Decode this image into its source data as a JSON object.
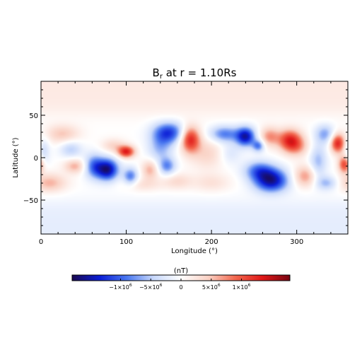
{
  "chart_data": {
    "type": "heatmap",
    "title": "B",
    "title_subscript": "r",
    "title_suffix": " at r = 1.10Rs",
    "xlabel": "Longitude (°)",
    "ylabel": "Latitude (°)",
    "xlim": [
      0,
      360
    ],
    "ylim": [
      -90,
      90
    ],
    "xticks": [
      0,
      100,
      200,
      300
    ],
    "yticks": [
      -50,
      0,
      50
    ],
    "colorbar": {
      "title": "(nT)",
      "range": [
        -1800000.0,
        1800000.0
      ],
      "colormap": [
        "#1a0a54",
        "#0b1ed6",
        "#4a78f0",
        "#c9d9fb",
        "#ffffff",
        "#fad2c5",
        "#f2684f",
        "#e01818",
        "#7a0612"
      ],
      "tick_values": [
        -1000000,
        -500000,
        0,
        500000,
        1000000
      ],
      "tick_labels": [
        "−1×10",
        "−5×10",
        "0",
        "5×10",
        "1×10"
      ],
      "tick_exponents": [
        "6",
        "6",
        "",
        "6",
        "6"
      ]
    },
    "polar_field": {
      "north": 0.12,
      "south": -0.12
    },
    "features": [
      {
        "lon": 78,
        "lat": -14,
        "value": -1600000.0,
        "rlon": 9,
        "rlat": 9
      },
      {
        "lon": 62,
        "lat": -10,
        "value": -900000.0,
        "rlon": 8,
        "rlat": 10
      },
      {
        "lon": 100,
        "lat": 7,
        "value": 1300000.0,
        "rlon": 7,
        "rlat": 5
      },
      {
        "lon": 85,
        "lat": 14,
        "value": 400000.0,
        "rlon": 10,
        "rlat": 6
      },
      {
        "lon": 105,
        "lat": -22,
        "value": -900000.0,
        "rlon": 6,
        "rlat": 7
      },
      {
        "lon": 128,
        "lat": -14,
        "value": 600000.0,
        "rlon": 7,
        "rlat": 8
      },
      {
        "lon": 148,
        "lat": -10,
        "value": -800000.0,
        "rlon": 7,
        "rlat": 7
      },
      {
        "lon": 150,
        "lat": 30,
        "value": -1200000.0,
        "rlon": 13,
        "rlat": 9
      },
      {
        "lon": 140,
        "lat": 12,
        "value": -600000.0,
        "rlon": 10,
        "rlat": 12
      },
      {
        "lon": 175,
        "lat": 22,
        "value": 1300000.0,
        "rlon": 8,
        "rlat": 11
      },
      {
        "lon": 195,
        "lat": 5,
        "value": 400000.0,
        "rlon": 14,
        "rlat": 13
      },
      {
        "lon": 200,
        "lat": -30,
        "value": 300000.0,
        "rlon": 16,
        "rlat": 8
      },
      {
        "lon": 215,
        "lat": 28,
        "value": -900000.0,
        "rlon": 12,
        "rlat": 7
      },
      {
        "lon": 240,
        "lat": 25,
        "value": -1500000.0,
        "rlon": 8,
        "rlat": 8
      },
      {
        "lon": 255,
        "lat": 14,
        "value": -900000.0,
        "rlon": 5,
        "rlat": 5
      },
      {
        "lon": 222,
        "lat": 5,
        "value": -300000.0,
        "rlon": 9,
        "rlat": 9
      },
      {
        "lon": 270,
        "lat": -27,
        "value": -1600000.0,
        "rlon": 14,
        "rlat": 10
      },
      {
        "lon": 255,
        "lat": -15,
        "value": -800000.0,
        "rlon": 12,
        "rlat": 8
      },
      {
        "lon": 268,
        "lat": 25,
        "value": 700000.0,
        "rlon": 8,
        "rlat": 8
      },
      {
        "lon": 292,
        "lat": 21,
        "value": 1200000.0,
        "rlon": 10,
        "rlat": 9
      },
      {
        "lon": 300,
        "lat": 12,
        "value": 500000.0,
        "rlon": 10,
        "rlat": 8
      },
      {
        "lon": 310,
        "lat": -22,
        "value": 700000.0,
        "rlon": 10,
        "rlat": 9
      },
      {
        "lon": 333,
        "lat": 28,
        "value": -700000.0,
        "rlon": 8,
        "rlat": 8
      },
      {
        "lon": 348,
        "lat": 17,
        "value": 1300000.0,
        "rlon": 6,
        "rlat": 8
      },
      {
        "lon": 356,
        "lat": -8,
        "value": 1100000.0,
        "rlon": 5,
        "rlat": 7
      },
      {
        "lon": 325,
        "lat": -5,
        "value": -600000.0,
        "rlon": 7,
        "rlat": 14
      },
      {
        "lon": 335,
        "lat": -30,
        "value": -600000.0,
        "rlon": 9,
        "rlat": 6
      },
      {
        "lon": 25,
        "lat": 28,
        "value": 500000.0,
        "rlon": 14,
        "rlat": 8
      },
      {
        "lon": 10,
        "lat": -30,
        "value": 600000.0,
        "rlon": 14,
        "rlat": 8
      },
      {
        "lon": 35,
        "lat": 10,
        "value": -500000.0,
        "rlon": 9,
        "rlat": 7
      },
      {
        "lon": 40,
        "lat": -10,
        "value": 600000.0,
        "rlon": 9,
        "rlat": 6
      },
      {
        "lon": 3,
        "lat": 8,
        "value": -400000.0,
        "rlon": 5,
        "rlat": 12
      },
      {
        "lon": 120,
        "lat": -32,
        "value": 300000.0,
        "rlon": 16,
        "rlat": 6
      },
      {
        "lon": 160,
        "lat": -28,
        "value": 350000.0,
        "rlon": 12,
        "rlat": 7
      }
    ]
  }
}
